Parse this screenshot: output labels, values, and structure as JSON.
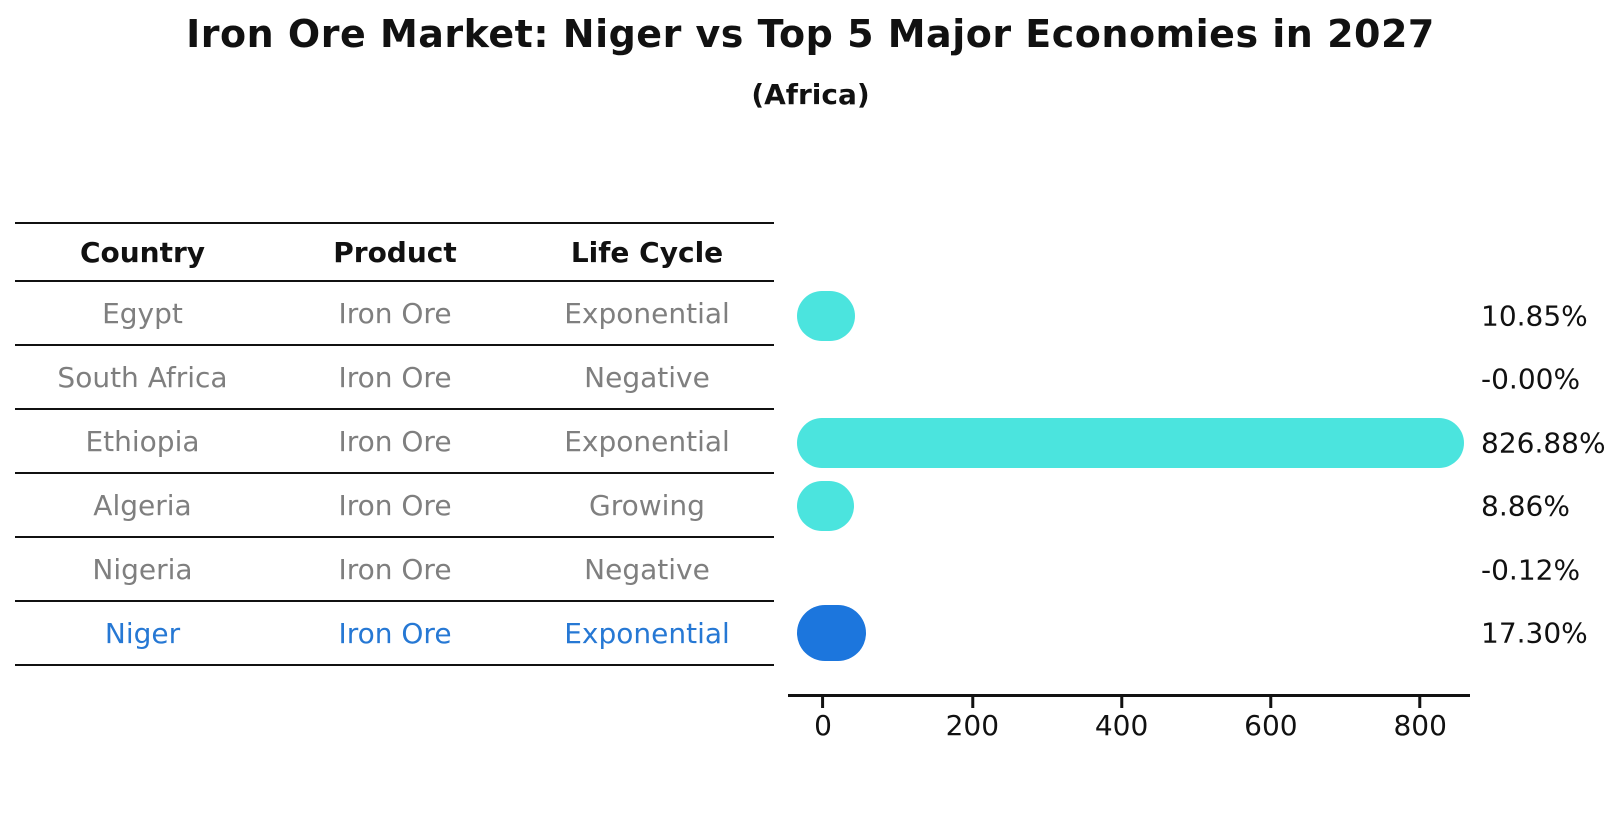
{
  "title": "Iron Ore Market: Niger vs Top 5 Major Economies in 2027",
  "subtitle": "(Africa)",
  "table": {
    "headers": [
      "Country",
      "Product",
      "Life Cycle"
    ],
    "rows": [
      {
        "country": "Egypt",
        "product": "Iron Ore",
        "life_cycle": "Exponential",
        "highlight": false
      },
      {
        "country": "South Africa",
        "product": "Iron Ore",
        "life_cycle": "Negative",
        "highlight": false
      },
      {
        "country": "Ethiopia",
        "product": "Iron Ore",
        "life_cycle": "Exponential",
        "highlight": false
      },
      {
        "country": "Algeria",
        "product": "Iron Ore",
        "life_cycle": "Growing",
        "highlight": false
      },
      {
        "country": "Nigeria",
        "product": "Iron Ore",
        "life_cycle": "Negative",
        "highlight": false
      },
      {
        "country": "Niger",
        "product": "Iron Ore",
        "life_cycle": "Exponential",
        "highlight": true
      }
    ]
  },
  "chart_data": {
    "type": "bar",
    "orientation": "horizontal",
    "categories": [
      "Egypt",
      "South Africa",
      "Ethiopia",
      "Algeria",
      "Nigeria",
      "Niger"
    ],
    "values": [
      10.85,
      -0.0,
      826.88,
      8.86,
      -0.12,
      17.3
    ],
    "value_labels": [
      "10.85%",
      "-0.00%",
      "826.88%",
      "8.86%",
      "-0.12%",
      "17.30%"
    ],
    "x_ticks": [
      "0",
      "200",
      "400",
      "600",
      "800"
    ],
    "x_tick_values": [
      0,
      200,
      400,
      600,
      800
    ],
    "xlim": [
      -47,
      867
    ],
    "grid": false,
    "legend": "none",
    "bar_color": "#4BE4DE",
    "highlight_bar_color": "#1C76DD",
    "highlight_text_color": "#2678D4",
    "highlight_index": 5,
    "axis_color": "#111111",
    "muted_text_color": "#7F7F7F"
  }
}
